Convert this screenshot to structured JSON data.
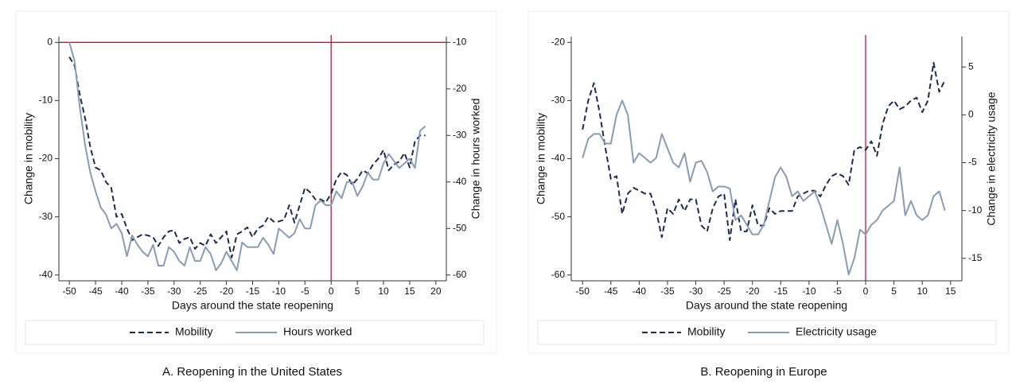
{
  "chart_data": [
    {
      "type": "line",
      "caption": "A. Reopening in the United States",
      "x_label": "Days around the state reopening",
      "y_label": "Change in mobility",
      "y2_label": "Change in hours worked",
      "x": [
        -50,
        -49,
        -48,
        -47,
        -46,
        -45,
        -44,
        -43,
        -42,
        -41,
        -40,
        -39,
        -38,
        -37,
        -36,
        -35,
        -34,
        -33,
        -32,
        -31,
        -30,
        -29,
        -28,
        -27,
        -26,
        -25,
        -24,
        -23,
        -22,
        -21,
        -20,
        -19,
        -18,
        -17,
        -16,
        -15,
        -14,
        -13,
        -12,
        -11,
        -10,
        -9,
        -8,
        -7,
        -6,
        -5,
        -4,
        -3,
        -2,
        -1,
        0,
        1,
        2,
        3,
        4,
        5,
        6,
        7,
        8,
        9,
        10,
        11,
        12,
        13,
        14,
        15,
        16,
        17,
        18
      ],
      "xlim": [
        -52,
        22
      ],
      "xticks": [
        -50,
        -45,
        -40,
        -35,
        -30,
        -25,
        -20,
        -15,
        -10,
        -5,
        0,
        5,
        10,
        15,
        20
      ],
      "ylim": [
        -41,
        1
      ],
      "yticks": [
        0,
        -10,
        -20,
        -30,
        -40
      ],
      "y2lim": [
        -61.25,
        -8.75
      ],
      "y2ticks": [
        -10,
        -20,
        -30,
        -40,
        -50,
        -60
      ],
      "vline": 0,
      "hline": 0,
      "ref_color": "#c0143c",
      "series": [
        {
          "name": "Mobility",
          "color": "#1c2b4e",
          "line_style": "dashed",
          "values": [
            -2.5,
            -4,
            -9,
            -13,
            -18,
            -21.5,
            -22,
            -24,
            -25,
            -30,
            -29.5,
            -32,
            -34,
            -33.5,
            -33,
            -33.2,
            -33.5,
            -35,
            -33.5,
            -32.5,
            -32.3,
            -34.5,
            -33.8,
            -33.5,
            -35.5,
            -34.5,
            -35,
            -33,
            -34.5,
            -33.5,
            -32.5,
            -37,
            -33,
            -32.5,
            -31.8,
            -33.5,
            -32,
            -31.5,
            -30,
            -30.8,
            -30.8,
            -30.5,
            -28,
            -31,
            -28,
            -25,
            -25.8,
            -27,
            -27,
            -27.5,
            -26,
            -23.5,
            -22.3,
            -22.8,
            -24.5,
            -23.5,
            -22,
            -22.5,
            -21,
            -20,
            -18.5,
            -22,
            -21,
            -20.5,
            -19,
            -21.5,
            -17,
            -16,
            -16
          ]
        },
        {
          "name": "Hours worked",
          "color": "#8a9cb2",
          "line_style": "solid",
          "axis": "y2",
          "values": [
            -10,
            -14,
            -24,
            -32,
            -38,
            -42,
            -45.5,
            -47,
            -50,
            -49,
            -51,
            -56,
            -51.5,
            -53.5,
            -55,
            -56,
            -53.5,
            -58,
            -58,
            -54,
            -55,
            -57,
            -58,
            -54,
            -57,
            -57,
            -54,
            -55.5,
            -59,
            -57.5,
            -55,
            -57,
            -59,
            -53,
            -54,
            -54,
            -54,
            -52,
            -53.5,
            -55.5,
            -50,
            -51,
            -52,
            -51,
            -48,
            -50,
            -50,
            -45,
            -44,
            -45,
            -45,
            -42,
            -43.5,
            -40,
            -40,
            -43,
            -41,
            -38,
            -39.5,
            -39.5,
            -36,
            -34,
            -35.5,
            -37,
            -36,
            -35,
            -37,
            -29,
            -28
          ]
        }
      ]
    },
    {
      "type": "line",
      "caption": "B. Reopening in Europe",
      "x_label": "Days around the state reopening",
      "y_label": "Change in mobility",
      "y2_label": "Change in electricity usage",
      "x": [
        -50,
        -49,
        -48,
        -47,
        -46,
        -45,
        -44,
        -43,
        -42,
        -41,
        -40,
        -39,
        -38,
        -37,
        -36,
        -35,
        -34,
        -33,
        -32,
        -31,
        -30,
        -29,
        -28,
        -27,
        -26,
        -25,
        -24,
        -23,
        -22,
        -21,
        -20,
        -19,
        -18,
        -17,
        -16,
        -15,
        -14,
        -13,
        -12,
        -11,
        -10,
        -9,
        -8,
        -7,
        -6,
        -5,
        -4,
        -3,
        -2,
        -1,
        0,
        1,
        2,
        3,
        4,
        5,
        6,
        7,
        8,
        9,
        10,
        11,
        12,
        13,
        14
      ],
      "xlim": [
        -52,
        17
      ],
      "xticks": [
        -50,
        -45,
        -40,
        -35,
        -30,
        -25,
        -20,
        -15,
        -10,
        -5,
        0,
        5,
        10,
        15
      ],
      "ylim": [
        -61,
        -19
      ],
      "yticks": [
        -20,
        -30,
        -40,
        -50,
        -60
      ],
      "y2lim": [
        -17.35,
        8.18
      ],
      "y2ticks": [
        5,
        0,
        -5,
        -10,
        -15
      ],
      "vline": 0,
      "ref_color": "#c0143c",
      "series": [
        {
          "name": "Mobility",
          "color": "#1c2b4e",
          "line_style": "dashed",
          "values": [
            -35,
            -30,
            -27,
            -32,
            -38,
            -43.5,
            -43,
            -49.5,
            -46,
            -45,
            -45.5,
            -46,
            -46,
            -49,
            -53.5,
            -48.5,
            -49.5,
            -47,
            -49,
            -47,
            -47,
            -51.5,
            -52.5,
            -48.5,
            -46.5,
            -46,
            -54,
            -47,
            -52.5,
            -52.5,
            -48,
            -51.5,
            -51.5,
            -48.5,
            -49.5,
            -49,
            -49,
            -49,
            -46.5,
            -46,
            -45.5,
            -45.5,
            -46.5,
            -44.5,
            -43,
            -42.5,
            -43,
            -44.5,
            -38.5,
            -38,
            -38.5,
            -37,
            -39.5,
            -34,
            -31,
            -30,
            -31.5,
            -31,
            -30,
            -29.5,
            -32,
            -30,
            -23.5,
            -28.5,
            -26.5
          ]
        },
        {
          "name": "Electricity usage",
          "color": "#8a9cb2",
          "line_style": "solid",
          "axis": "y2",
          "values": [
            -4.5,
            -2.5,
            -2,
            -2,
            -3,
            -3,
            0,
            1.5,
            0,
            -5,
            -4,
            -4.5,
            -5,
            -4.5,
            -2,
            -3.5,
            -5,
            -5.5,
            -4,
            -7,
            -5,
            -4.8,
            -6,
            -8,
            -7.5,
            -7.5,
            -7.7,
            -11,
            -10.5,
            -11.5,
            -12.5,
            -12.5,
            -11.5,
            -9,
            -6.5,
            -5.5,
            -6.5,
            -8.5,
            -8,
            -9,
            -8.5,
            -8,
            -9.5,
            -11.5,
            -13.5,
            -11,
            -13.5,
            -16.7,
            -15,
            -12,
            -12.5,
            -11.5,
            -11,
            -10,
            -9.5,
            -9,
            -5.5,
            -10.5,
            -9,
            -10.5,
            -11,
            -10.5,
            -8.5,
            -8,
            -10
          ]
        }
      ]
    }
  ]
}
